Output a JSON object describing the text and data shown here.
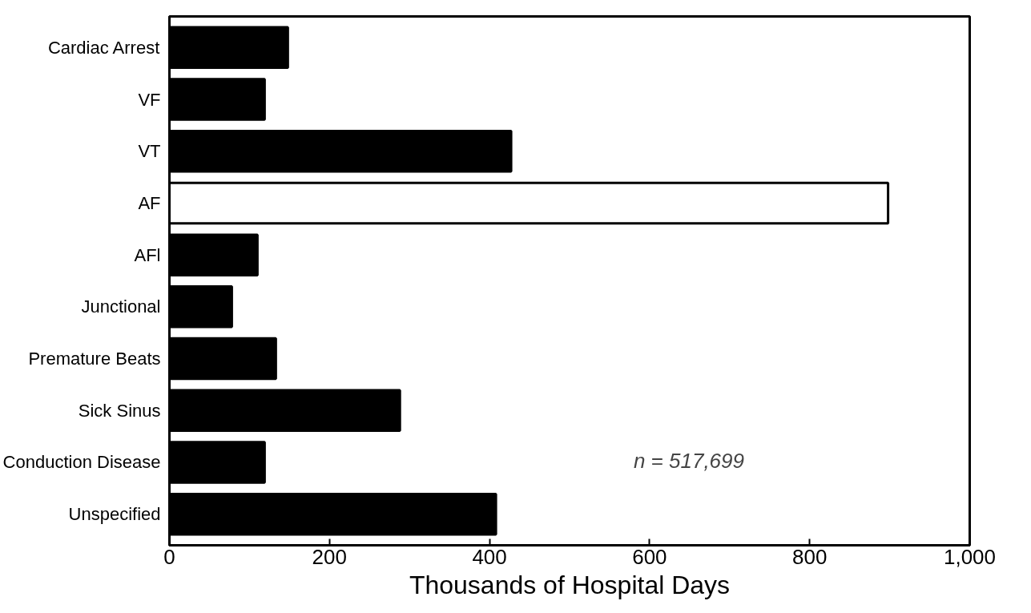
{
  "chart_data": {
    "type": "bar",
    "orientation": "horizontal",
    "xlabel": "Thousands of Hospital Days",
    "categories": [
      "Cardiac Arrest",
      "VF",
      "VT",
      "AF",
      "AFl",
      "Junctional",
      "Premature Beats",
      "Sick Sinus",
      "Conduction Disease",
      "Unspecified"
    ],
    "values": [
      148,
      119,
      427,
      898,
      110,
      78,
      133,
      288,
      119,
      408
    ],
    "colors": [
      "#000000",
      "#000000",
      "#000000",
      "#ffffff",
      "#000000",
      "#000000",
      "#000000",
      "#000000",
      "#000000",
      "#000000"
    ],
    "xlim": [
      0,
      1000
    ],
    "xticks": [
      0,
      200,
      400,
      600,
      800,
      {
        "value": 1000,
        "label": "1,000"
      }
    ],
    "grid": false,
    "annotations": [
      "n = 517,699"
    ]
  }
}
